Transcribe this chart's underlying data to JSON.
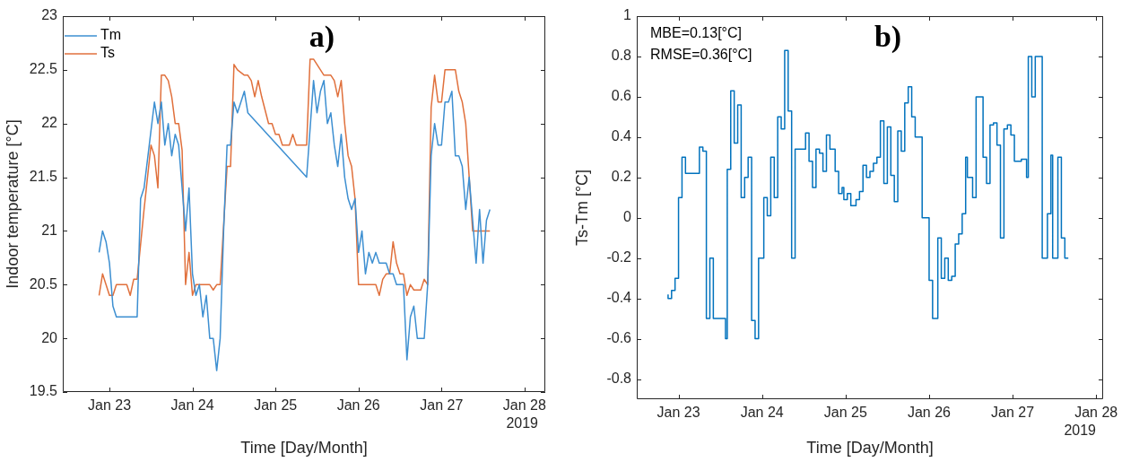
{
  "chart_data": [
    {
      "type": "line",
      "title": "a)",
      "xlabel": "Time [Day/Month]",
      "ylabel": "Indoor temperature [°C]",
      "legend": "top left",
      "marker": "none",
      "grid": false,
      "xlim": [
        "2019-01-22T10:30",
        "2019-01-28T06:00"
      ],
      "xticks": [
        {
          "value": "2019-01-23",
          "label": "Jan 23"
        },
        {
          "value": "2019-01-24",
          "label": "Jan 24"
        },
        {
          "value": "2019-01-25",
          "label": "Jan 25"
        },
        {
          "value": "2019-01-26",
          "label": "Jan 26"
        },
        {
          "value": "2019-01-27",
          "label": "Jan 27"
        },
        {
          "value": "2019-01-28",
          "label": "Jan 28"
        }
      ],
      "ylim": [
        19.5,
        23
      ],
      "yticks": [
        19.5,
        20,
        20.5,
        21,
        21.5,
        22,
        22.5,
        23
      ],
      "annotations": [
        "2019"
      ],
      "series": [
        {
          "name": "Tm",
          "color": "#3d8fd1",
          "x": [
            "2019-01-22T21:00",
            "2019-01-22T22:00",
            "2019-01-22T23:00",
            "2019-01-23T00:00",
            "2019-01-23T01:00",
            "2019-01-23T02:00",
            "2019-01-23T08:00",
            "2019-01-23T09:00",
            "2019-01-23T10:00",
            "2019-01-23T13:00",
            "2019-01-23T14:00",
            "2019-01-23T15:00",
            "2019-01-23T16:00",
            "2019-01-23T17:00",
            "2019-01-23T18:00",
            "2019-01-23T19:00",
            "2019-01-23T20:00",
            "2019-01-23T22:00",
            "2019-01-23T23:00",
            "2019-01-24T00:00",
            "2019-01-24T01:00",
            "2019-01-24T02:00",
            "2019-01-24T03:00",
            "2019-01-24T04:00",
            "2019-01-24T05:00",
            "2019-01-24T06:00",
            "2019-01-24T07:00",
            "2019-01-24T08:00",
            "2019-01-24T09:00",
            "2019-01-24T10:00",
            "2019-01-24T11:00",
            "2019-01-24T12:00",
            "2019-01-24T13:00",
            "2019-01-24T15:00",
            "2019-01-24T16:00",
            "2019-01-25T09:00",
            "2019-01-25T11:00",
            "2019-01-25T12:00",
            "2019-01-25T13:00",
            "2019-01-25T14:00",
            "2019-01-25T15:00",
            "2019-01-25T16:00",
            "2019-01-25T17:00",
            "2019-01-25T18:00",
            "2019-01-25T19:00",
            "2019-01-25T20:00",
            "2019-01-25T21:00",
            "2019-01-25T22:00",
            "2019-01-25T23:00",
            "2019-01-26T00:00",
            "2019-01-26T01:00",
            "2019-01-26T02:00",
            "2019-01-26T03:00",
            "2019-01-26T04:00",
            "2019-01-26T05:00",
            "2019-01-26T06:00",
            "2019-01-26T08:00",
            "2019-01-26T09:00",
            "2019-01-26T10:00",
            "2019-01-26T11:00",
            "2019-01-26T13:00",
            "2019-01-26T14:00",
            "2019-01-26T15:00",
            "2019-01-26T16:00",
            "2019-01-26T17:00",
            "2019-01-26T19:00",
            "2019-01-26T20:00",
            "2019-01-26T21:00",
            "2019-01-26T22:00",
            "2019-01-26T23:00",
            "2019-01-27T00:00",
            "2019-01-27T01:00",
            "2019-01-27T02:00",
            "2019-01-27T03:00",
            "2019-01-27T04:00",
            "2019-01-27T05:00",
            "2019-01-27T06:00",
            "2019-01-27T07:00",
            "2019-01-27T08:00",
            "2019-01-27T09:00",
            "2019-01-27T10:00",
            "2019-01-27T11:00",
            "2019-01-27T12:00",
            "2019-01-27T13:00",
            "2019-01-27T14:00"
          ],
          "values": [
            20.8,
            21.0,
            20.9,
            20.7,
            20.3,
            20.2,
            20.2,
            21.3,
            21.4,
            22.2,
            22.0,
            22.2,
            21.8,
            22.0,
            21.7,
            21.9,
            21.8,
            21.0,
            21.4,
            20.6,
            20.4,
            20.5,
            20.2,
            20.4,
            20.0,
            20.0,
            19.7,
            20.0,
            21.0,
            21.8,
            21.8,
            22.2,
            22.1,
            22.3,
            22.1,
            21.5,
            22.4,
            22.1,
            22.3,
            22.4,
            22.0,
            22.1,
            21.8,
            21.6,
            21.9,
            21.5,
            21.3,
            21.2,
            21.3,
            20.8,
            21.0,
            20.6,
            20.8,
            20.7,
            20.8,
            20.7,
            20.7,
            20.6,
            20.6,
            20.5,
            20.5,
            19.8,
            20.2,
            20.3,
            20.0,
            20.0,
            20.5,
            21.7,
            22.0,
            21.8,
            21.8,
            22.2,
            22.2,
            22.3,
            21.7,
            21.7,
            21.6,
            21.2,
            21.5,
            21.1,
            20.7,
            21.2,
            20.7,
            21.1,
            21.2
          ]
        },
        {
          "name": "Ts",
          "color": "#e0703c",
          "x": [
            "2019-01-22T21:00",
            "2019-01-22T22:00",
            "2019-01-22T23:00",
            "2019-01-23T00:00",
            "2019-01-23T01:00",
            "2019-01-23T02:00",
            "2019-01-23T05:00",
            "2019-01-23T06:00",
            "2019-01-23T07:00",
            "2019-01-23T08:00",
            "2019-01-23T10:00",
            "2019-01-23T11:00",
            "2019-01-23T12:00",
            "2019-01-23T13:00",
            "2019-01-23T14:00",
            "2019-01-23T15:00",
            "2019-01-23T16:00",
            "2019-01-23T17:00",
            "2019-01-23T18:00",
            "2019-01-23T19:00",
            "2019-01-23T20:00",
            "2019-01-23T21:00",
            "2019-01-23T22:00",
            "2019-01-23T23:00",
            "2019-01-24T00:00",
            "2019-01-24T01:00",
            "2019-01-24T05:00",
            "2019-01-24T06:00",
            "2019-01-24T07:00",
            "2019-01-24T08:00",
            "2019-01-24T10:00",
            "2019-01-24T11:00",
            "2019-01-24T12:00",
            "2019-01-24T13:00",
            "2019-01-24T15:00",
            "2019-01-24T16:00",
            "2019-01-24T17:00",
            "2019-01-24T18:00",
            "2019-01-24T19:00",
            "2019-01-24T20:00",
            "2019-01-24T22:00",
            "2019-01-24T23:00",
            "2019-01-25T00:00",
            "2019-01-25T01:00",
            "2019-01-25T02:00",
            "2019-01-25T04:00",
            "2019-01-25T05:00",
            "2019-01-25T06:00",
            "2019-01-25T09:00",
            "2019-01-25T10:00",
            "2019-01-25T11:00",
            "2019-01-25T12:00",
            "2019-01-25T14:00",
            "2019-01-25T15:00",
            "2019-01-25T16:00",
            "2019-01-25T17:00",
            "2019-01-25T18:00",
            "2019-01-25T19:00",
            "2019-01-25T20:00",
            "2019-01-25T21:00",
            "2019-01-25T22:00",
            "2019-01-25T23:00",
            "2019-01-26T00:00",
            "2019-01-26T05:00",
            "2019-01-26T06:00",
            "2019-01-26T07:00",
            "2019-01-26T08:00",
            "2019-01-26T09:00",
            "2019-01-26T10:00",
            "2019-01-26T11:00",
            "2019-01-26T12:00",
            "2019-01-26T13:00",
            "2019-01-26T14:00",
            "2019-01-26T15:00",
            "2019-01-26T16:00",
            "2019-01-26T17:00",
            "2019-01-26T18:00",
            "2019-01-26T19:00",
            "2019-01-26T20:00",
            "2019-01-26T21:00",
            "2019-01-26T22:00",
            "2019-01-26T23:00",
            "2019-01-27T00:00",
            "2019-01-27T01:00",
            "2019-01-27T04:00",
            "2019-01-27T05:00",
            "2019-01-27T06:00",
            "2019-01-27T07:00",
            "2019-01-27T08:00",
            "2019-01-27T09:00",
            "2019-01-27T11:00",
            "2019-01-27T14:00"
          ],
          "values": [
            20.4,
            20.6,
            20.5,
            20.4,
            20.4,
            20.5,
            20.5,
            20.4,
            20.55,
            20.55,
            21.2,
            21.5,
            21.8,
            21.7,
            21.4,
            22.45,
            22.45,
            22.4,
            22.25,
            22.0,
            22.0,
            21.75,
            20.5,
            20.8,
            20.4,
            20.5,
            20.5,
            20.45,
            20.5,
            20.5,
            21.6,
            21.6,
            22.55,
            22.5,
            22.45,
            22.45,
            22.4,
            22.25,
            22.4,
            22.25,
            22.0,
            22.0,
            21.9,
            21.9,
            21.8,
            21.8,
            21.9,
            21.8,
            21.8,
            22.6,
            22.6,
            22.55,
            22.45,
            22.45,
            22.45,
            22.4,
            22.25,
            22.4,
            22.0,
            21.7,
            21.6,
            21.3,
            20.5,
            20.5,
            20.4,
            20.55,
            20.6,
            20.6,
            20.9,
            20.7,
            20.6,
            20.6,
            20.4,
            20.5,
            20.45,
            20.45,
            20.45,
            20.55,
            20.5,
            22.15,
            22.45,
            22.2,
            22.2,
            22.5,
            22.5,
            22.3,
            22.2,
            22.0,
            21.5,
            21.0,
            21.0,
            21.0
          ]
        }
      ]
    },
    {
      "type": "step",
      "title": "b)",
      "xlabel": "Time [Day/Month]",
      "ylabel": "Ts-Tm [°C]",
      "marker": "none",
      "grid": false,
      "xlim": [
        "2019-01-22T12:00",
        "2019-01-28T02:00"
      ],
      "xticks": [
        {
          "value": "2019-01-23",
          "label": "Jan 23"
        },
        {
          "value": "2019-01-24",
          "label": "Jan 24"
        },
        {
          "value": "2019-01-25",
          "label": "Jan 25"
        },
        {
          "value": "2019-01-26",
          "label": "Jan 26"
        },
        {
          "value": "2019-01-27",
          "label": "Jan 27"
        },
        {
          "value": "2019-01-28",
          "label": "Jan 28"
        }
      ],
      "ylim": [
        -0.9,
        1
      ],
      "yticks": [
        -0.8,
        -0.6,
        -0.4,
        -0.2,
        0,
        0.2,
        0.4,
        0.6,
        0.8,
        1
      ],
      "annotations": [
        "MBE=0.13[°C]",
        "RMSE=0.36[°C]",
        "2019"
      ],
      "series": [
        {
          "color": "#0072bd",
          "x": [
            "2019-01-22T21:00",
            "2019-01-22T22:00",
            "2019-01-22T23:00",
            "2019-01-23T00:00",
            "2019-01-23T01:00",
            "2019-01-23T02:00",
            "2019-01-23T06:00",
            "2019-01-23T07:00",
            "2019-01-23T08:00",
            "2019-01-23T09:00",
            "2019-01-23T10:00",
            "2019-01-23T13:30",
            "2019-01-23T14:00",
            "2019-01-23T15:00",
            "2019-01-23T16:00",
            "2019-01-23T17:00",
            "2019-01-23T18:00",
            "2019-01-23T19:00",
            "2019-01-23T20:00",
            "2019-01-23T21:00",
            "2019-01-23T22:00",
            "2019-01-23T23:00",
            "2019-01-24T00:30",
            "2019-01-24T01:30",
            "2019-01-24T02:30",
            "2019-01-24T03:30",
            "2019-01-24T04:30",
            "2019-01-24T05:30",
            "2019-01-24T06:30",
            "2019-01-24T07:30",
            "2019-01-24T08:30",
            "2019-01-24T09:30",
            "2019-01-24T12:30",
            "2019-01-24T13:30",
            "2019-01-24T14:30",
            "2019-01-24T15:30",
            "2019-01-24T16:30",
            "2019-01-24T17:30",
            "2019-01-24T18:30",
            "2019-01-24T19:30",
            "2019-01-24T21:00",
            "2019-01-24T22:00",
            "2019-01-24T23:00",
            "2019-01-24T23:30",
            "2019-01-25T00:30",
            "2019-01-25T01:30",
            "2019-01-25T03:00",
            "2019-01-25T04:00",
            "2019-01-25T05:00",
            "2019-01-25T06:00",
            "2019-01-25T07:00",
            "2019-01-25T08:00",
            "2019-01-25T09:00",
            "2019-01-25T10:00",
            "2019-01-25T11:00",
            "2019-01-25T12:00",
            "2019-01-25T13:00",
            "2019-01-25T14:00",
            "2019-01-25T15:00",
            "2019-01-25T16:00",
            "2019-01-25T17:00",
            "2019-01-25T18:00",
            "2019-01-25T19:00",
            "2019-01-25T20:00",
            "2019-01-25T22:00",
            "2019-01-26T00:00",
            "2019-01-26T01:00",
            "2019-01-26T02:30",
            "2019-01-26T03:30",
            "2019-01-26T04:30",
            "2019-01-26T05:30",
            "2019-01-26T06:30",
            "2019-01-26T07:30",
            "2019-01-26T08:30",
            "2019-01-26T09:30",
            "2019-01-26T10:30",
            "2019-01-26T11:00",
            "2019-01-26T12:30",
            "2019-01-26T13:30",
            "2019-01-26T15:30",
            "2019-01-26T16:30",
            "2019-01-26T17:30",
            "2019-01-26T18:30",
            "2019-01-26T19:30",
            "2019-01-26T20:30",
            "2019-01-26T21:30",
            "2019-01-26T22:30",
            "2019-01-26T23:30",
            "2019-01-27T00:30",
            "2019-01-27T02:30",
            "2019-01-27T04:00",
            "2019-01-27T04:30",
            "2019-01-27T05:30",
            "2019-01-27T06:30",
            "2019-01-27T08:30",
            "2019-01-27T10:00",
            "2019-01-27T11:00",
            "2019-01-27T11:30",
            "2019-01-27T13:00",
            "2019-01-27T14:00",
            "2019-01-27T15:00",
            "2019-01-27T16:00"
          ],
          "values": [
            -0.38,
            -0.4,
            -0.36,
            -0.3,
            0.1,
            0.3,
            0.22,
            0.35,
            0.33,
            -0.5,
            -0.2,
            -0.5,
            -0.6,
            0.24,
            0.63,
            0.37,
            0.56,
            0.1,
            0.2,
            0.3,
            -0.51,
            -0.6,
            -0.2,
            0.1,
            0.01,
            0.3,
            0.1,
            0.5,
            0.44,
            0.83,
            0.53,
            -0.2,
            0.34,
            0.42,
            0.28,
            0.15,
            0.34,
            0.32,
            0.23,
            0.41,
            0.34,
            0.23,
            0.12,
            0.15,
            0.09,
            0.12,
            0.06,
            0.09,
            0.13,
            0.26,
            0.2,
            0.23,
            0.27,
            0.3,
            0.48,
            0.17,
            0.45,
            0.21,
            0.08,
            0.43,
            0.33,
            0.57,
            0.65,
            0.5,
            0.4,
            0.0,
            -0.31,
            -0.5,
            -0.1,
            -0.3,
            -0.2,
            -0.31,
            -0.29,
            -0.13,
            -0.08,
            0.02,
            0.3,
            0.2,
            0.1,
            0.6,
            0.3,
            0.17,
            0.46,
            0.47,
            0.36,
            -0.1,
            0.44,
            0.46,
            0.41,
            0.28,
            0.29,
            0.2,
            0.8,
            0.6,
            0.8,
            -0.2,
            0.02,
            0.31,
            -0.2,
            0.3,
            -0.1,
            -0.2
          ]
        }
      ]
    }
  ]
}
